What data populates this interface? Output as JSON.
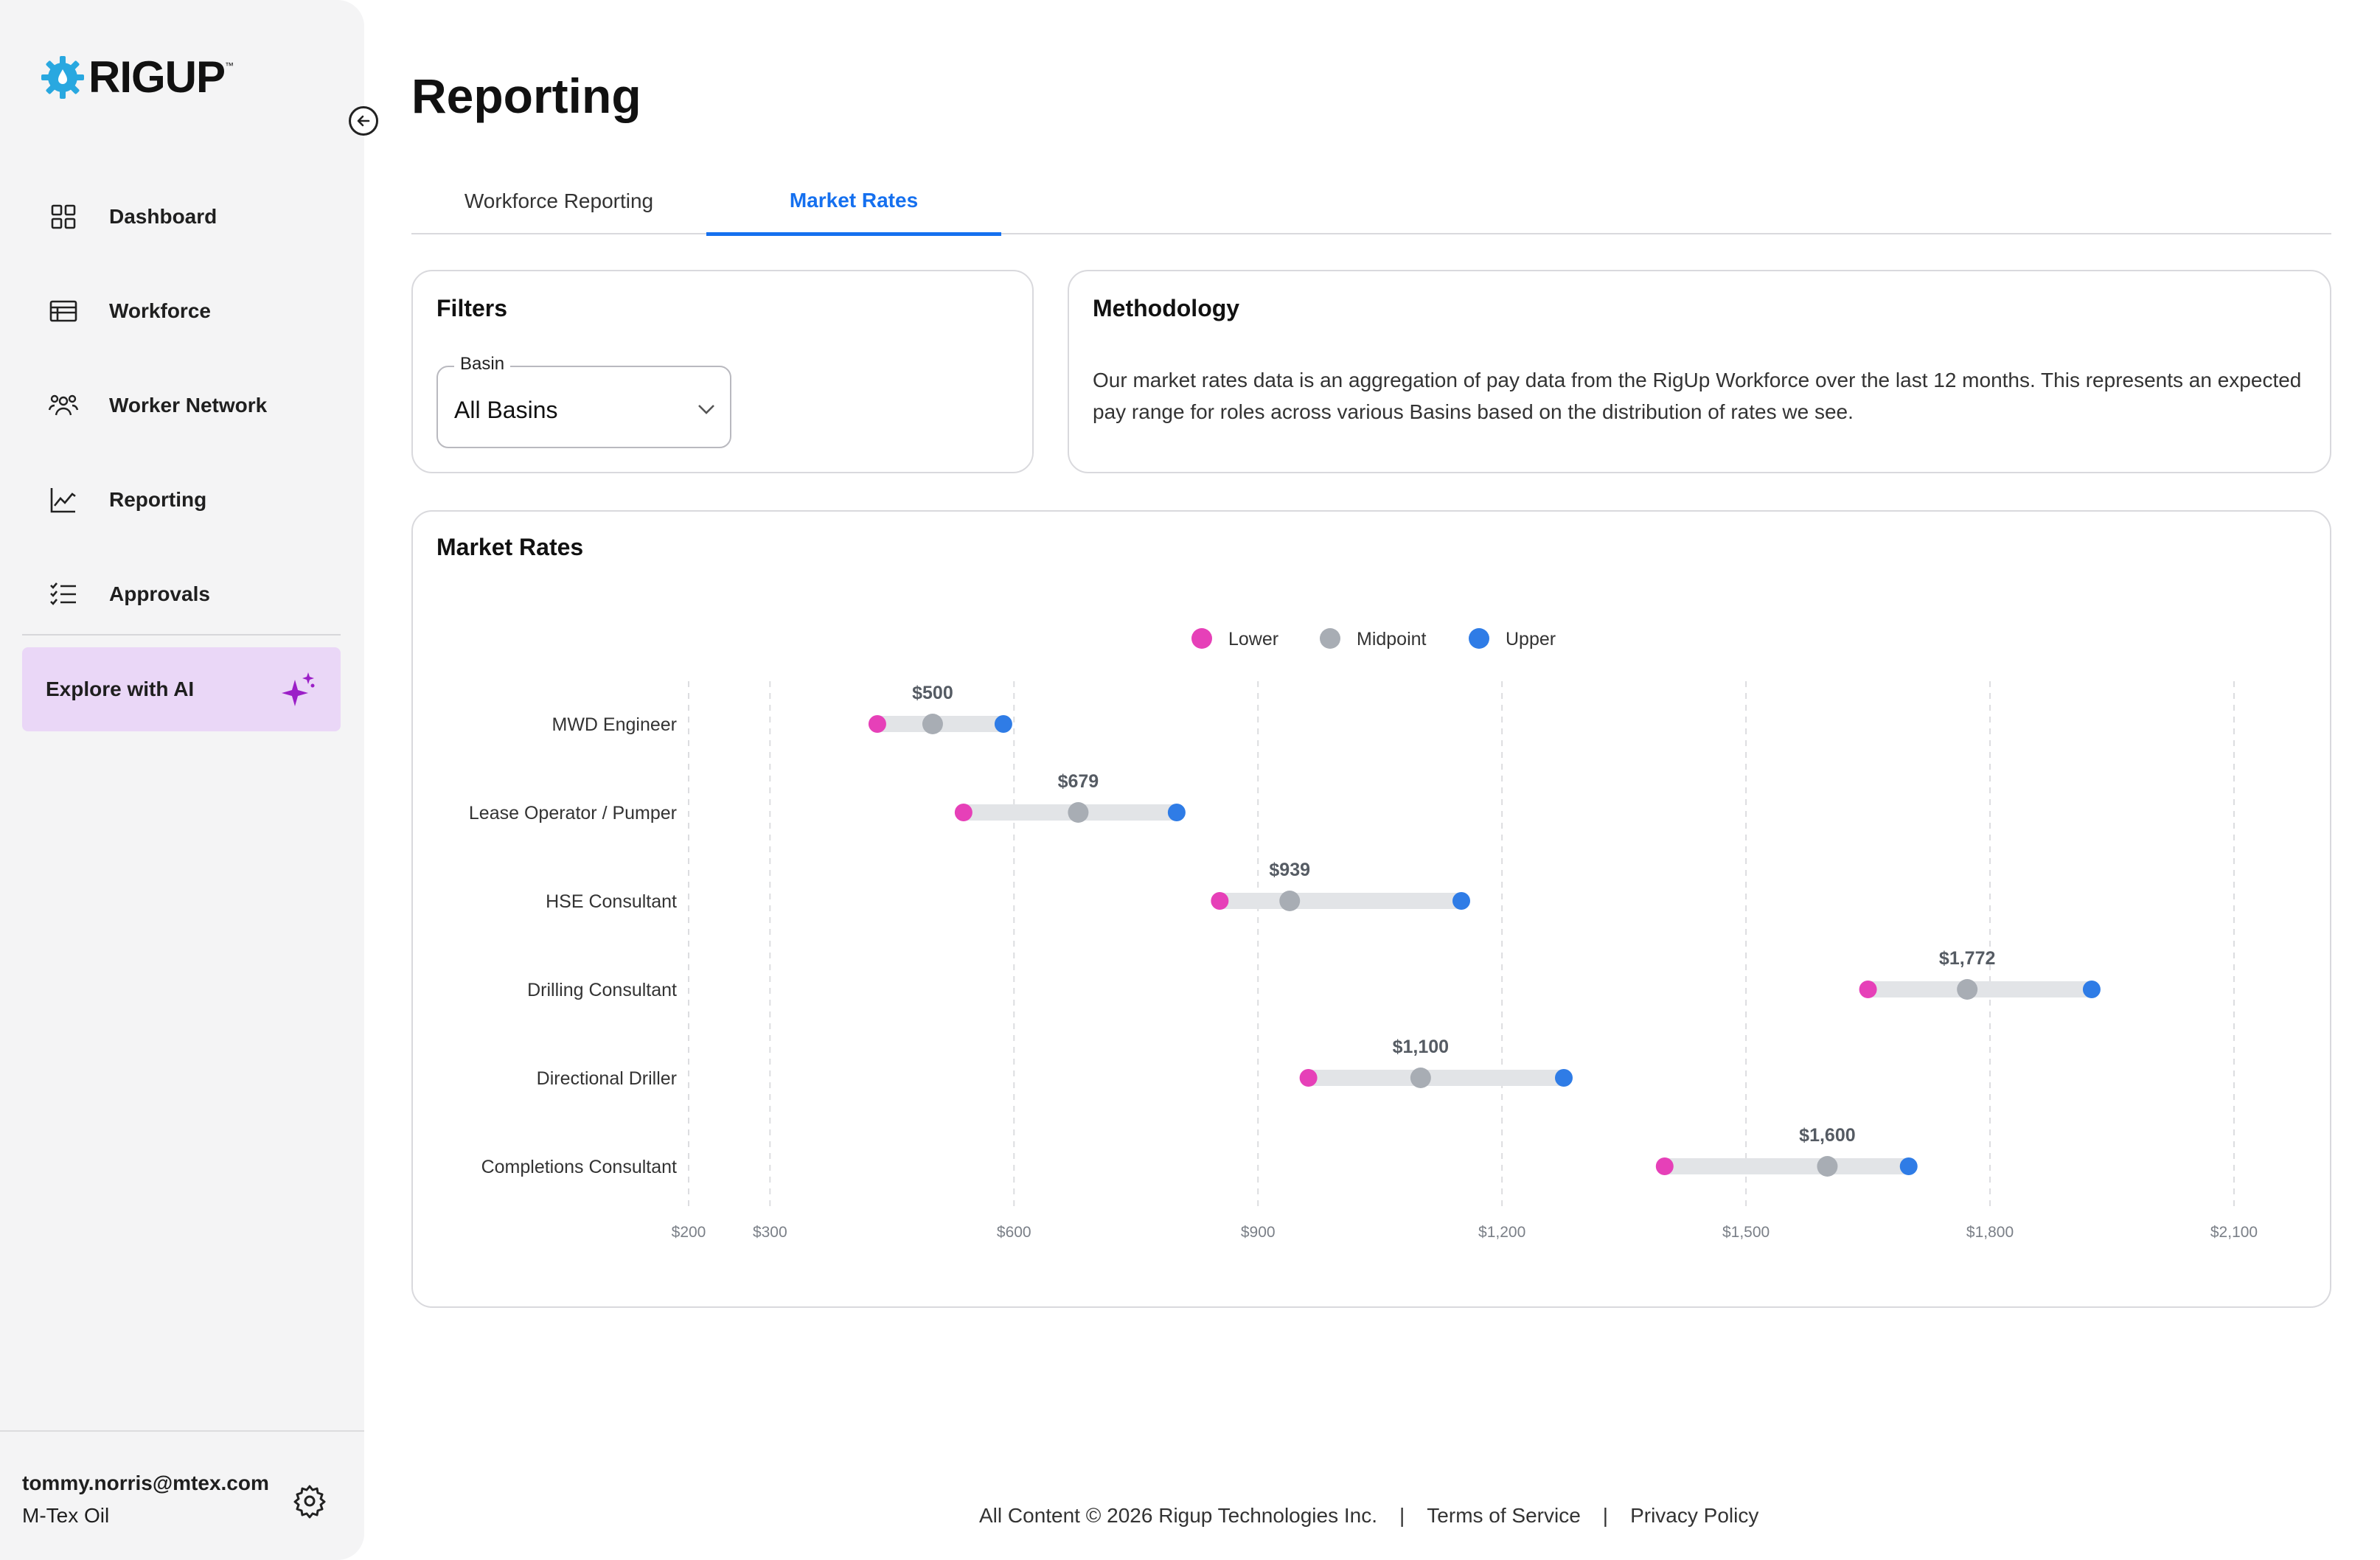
{
  "brand": {
    "name": "RIGUP",
    "tm": "™",
    "accent": "#29a8e0"
  },
  "sidebar": {
    "items": [
      {
        "label": "Dashboard",
        "icon": "dashboard-icon"
      },
      {
        "label": "Workforce",
        "icon": "table-icon"
      },
      {
        "label": "Worker Network",
        "icon": "people-icon"
      },
      {
        "label": "Reporting",
        "icon": "line-chart-icon"
      },
      {
        "label": "Approvals",
        "icon": "checklist-icon"
      }
    ],
    "ai_button": {
      "label": "Explore with AI",
      "icon": "sparkle-icon",
      "color": "#ead7f7"
    },
    "user": {
      "email": "tommy.norris@mtex.com",
      "org": "M-Tex Oil"
    }
  },
  "page": {
    "title": "Reporting"
  },
  "tabs": [
    {
      "label": "Workforce Reporting",
      "active": false
    },
    {
      "label": "Market Rates",
      "active": true
    }
  ],
  "filters": {
    "title": "Filters",
    "basin": {
      "label": "Basin",
      "value": "All Basins"
    }
  },
  "methodology": {
    "title": "Methodology",
    "text": "Our market rates data is an aggregation of pay data from the RigUp Workforce over the last 12 months. This represents an expected pay range for roles across various Basins based on the distribution of rates we see."
  },
  "chart_data": {
    "type": "dumbbell",
    "title": "Market Rates",
    "legend": [
      {
        "name": "Lower",
        "color": "#e640b8"
      },
      {
        "name": "Midpoint",
        "color": "#a8adb4"
      },
      {
        "name": "Upper",
        "color": "#2f7ce6"
      }
    ],
    "legend_position": "top-center",
    "x_ticks": [
      200,
      300,
      600,
      900,
      1200,
      1500,
      1800,
      2100
    ],
    "x_tick_labels": [
      "$200",
      "$300",
      "$600",
      "$900",
      "$1,200",
      "$1,500",
      "$1,800",
      "$2,100"
    ],
    "xlim": [
      200,
      2100
    ],
    "grid": "vertical-dashed",
    "categories": [
      "MWD Engineer",
      "Lease Operator / Pumper",
      "HSE Consultant",
      "Drilling Consultant",
      "Directional Driller",
      "Completions Consultant"
    ],
    "rows": [
      {
        "lower": 432,
        "mid": 500,
        "upper": 587,
        "label": "$500"
      },
      {
        "lower": 538,
        "mid": 679,
        "upper": 800,
        "label": "$679"
      },
      {
        "lower": 853,
        "mid": 939,
        "upper": 1150,
        "label": "$939"
      },
      {
        "lower": 1650,
        "mid": 1772,
        "upper": 1925,
        "label": "$1,772"
      },
      {
        "lower": 962,
        "mid": 1100,
        "upper": 1276,
        "label": "$1,100"
      },
      {
        "lower": 1400,
        "mid": 1600,
        "upper": 1700,
        "label": "$1,600"
      }
    ]
  },
  "footer": {
    "copyright": "All Content © 2026 Rigup Technologies Inc.",
    "separator": "|",
    "terms": "Terms of Service",
    "privacy": "Privacy Policy"
  }
}
